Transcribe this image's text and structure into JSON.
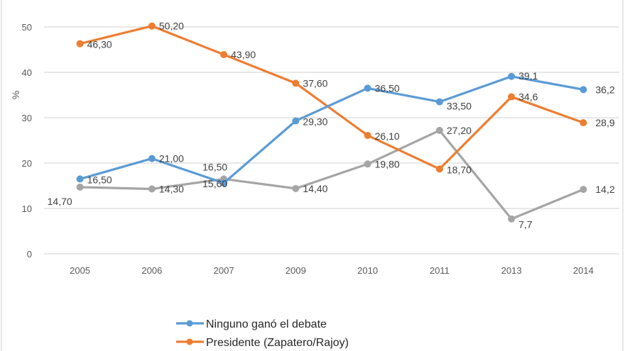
{
  "chart_data": {
    "type": "line",
    "title": "",
    "xlabel": "",
    "ylabel": "%",
    "ylim": [
      0,
      50
    ],
    "yticks": [
      0,
      10,
      20,
      30,
      40,
      50
    ],
    "ytick_labels": [
      "0",
      "10",
      "20",
      "30",
      "40",
      "50"
    ],
    "grid": true,
    "legend_position": "bottom",
    "categories": [
      "2005",
      "2006",
      "2007",
      "2009",
      "2010",
      "2011",
      "2013",
      "2014"
    ],
    "series": [
      {
        "name": "Ninguno ganó el debate",
        "color": "#5b9bd5",
        "values": [
          16.5,
          21.0,
          15.6,
          29.3,
          36.5,
          33.5,
          39.1,
          36.2
        ],
        "labels": [
          "16,50",
          "21,00",
          "15,60",
          "29,30",
          "36,50",
          "33,50",
          "39,1",
          "36,2"
        ]
      },
      {
        "name": "Presidente (Zapatero/Rajoy)",
        "color": "#ed7d31",
        "values": [
          46.3,
          50.2,
          43.9,
          37.6,
          26.1,
          18.7,
          34.6,
          28.9
        ],
        "labels": [
          "46,30",
          "50,20",
          "43,90",
          "37,60",
          "26,10",
          "18,70",
          "34,6",
          "28,9"
        ]
      },
      {
        "name": "",
        "color": "#a5a5a5",
        "values": [
          14.7,
          14.3,
          16.5,
          14.4,
          19.8,
          27.2,
          7.7,
          14.2
        ],
        "labels": [
          "14,70",
          "14,30",
          "16,50",
          "14,40",
          "19,80",
          "27,20",
          "7,7",
          "14,2"
        ]
      }
    ]
  }
}
